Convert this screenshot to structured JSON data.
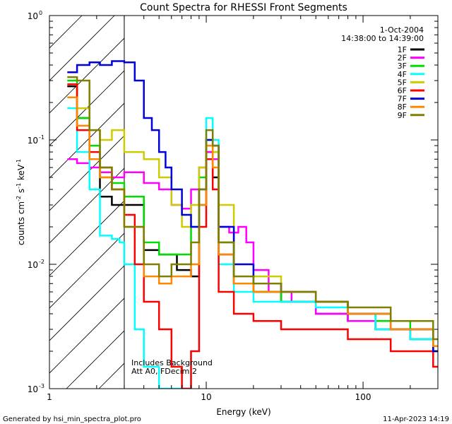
{
  "chart_data": {
    "type": "line",
    "title": "Count Spectra for RHESSI Front Segments",
    "xlabel": "Energy (keV)",
    "ylabel_main": "counts cm",
    "ylabel_exp1": "-2",
    "ylabel_s": " s",
    "ylabel_exp2": "-1",
    "ylabel_kev": " keV",
    "ylabel_exp3": "-1",
    "x_scale": "log",
    "y_scale": "log",
    "xlim": [
      1,
      300
    ],
    "ylim": [
      0.001,
      1
    ],
    "x_ticks": [
      {
        "value": 1,
        "label": "1"
      },
      {
        "value": 10,
        "label": "10"
      },
      {
        "value": 100,
        "label": "100"
      }
    ],
    "y_ticks": [
      {
        "value": 0.001,
        "base": "10",
        "exp": "-3"
      },
      {
        "value": 0.01,
        "base": "10",
        "exp": "-2"
      },
      {
        "value": 0.1,
        "base": "10",
        "exp": "-1"
      },
      {
        "value": 1,
        "base": "10",
        "exp": "0"
      }
    ],
    "date": "1-Oct-2004",
    "time_range": "14:38:00 to 14:39:00",
    "annotations": [
      "Includes Background",
      "Att A0, FDecim 2"
    ],
    "hatched_region_max_kev": 3,
    "footer_left": "Generated by hsi_min_spectra_plot.pro",
    "footer_right": "11-Apr-2023 14:19",
    "series": [
      {
        "name": "1F",
        "color": "#000000",
        "points": [
          [
            1.3,
            0.27
          ],
          [
            1.5,
            0.15
          ],
          [
            1.8,
            0.07
          ],
          [
            2.1,
            0.035
          ],
          [
            2.5,
            0.03
          ],
          [
            3.0,
            0.03
          ],
          [
            4.0,
            0.013
          ],
          [
            5.0,
            0.012
          ],
          [
            6.5,
            0.009
          ],
          [
            8.0,
            0.008
          ],
          [
            9.0,
            0.03
          ],
          [
            10.0,
            0.08
          ],
          [
            11.0,
            0.05
          ],
          [
            12.0,
            0.012
          ],
          [
            15,
            0.007
          ],
          [
            20,
            0.006
          ],
          [
            30,
            0.005
          ],
          [
            50,
            0.004
          ],
          [
            80,
            0.0035
          ],
          [
            120,
            0.003
          ],
          [
            200,
            0.0025
          ],
          [
            280,
            0.002
          ]
        ]
      },
      {
        "name": "2F",
        "color": "#ff00ff",
        "points": [
          [
            1.3,
            0.07
          ],
          [
            1.5,
            0.065
          ],
          [
            1.8,
            0.06
          ],
          [
            2.1,
            0.055
          ],
          [
            2.5,
            0.05
          ],
          [
            3.0,
            0.055
          ],
          [
            4.0,
            0.045
          ],
          [
            5.0,
            0.04
          ],
          [
            6.0,
            0.03
          ],
          [
            7.0,
            0.028
          ],
          [
            8.0,
            0.04
          ],
          [
            9.0,
            0.06
          ],
          [
            10.0,
            0.08
          ],
          [
            11.0,
            0.07
          ],
          [
            12.0,
            0.02
          ],
          [
            14,
            0.018
          ],
          [
            16,
            0.02
          ],
          [
            18,
            0.015
          ],
          [
            20,
            0.009
          ],
          [
            25,
            0.006
          ],
          [
            35,
            0.005
          ],
          [
            50,
            0.004
          ],
          [
            80,
            0.0035
          ],
          [
            150,
            0.003
          ],
          [
            280,
            0.002
          ]
        ]
      },
      {
        "name": "3F",
        "color": "#00dd00",
        "points": [
          [
            1.3,
            0.3
          ],
          [
            1.5,
            0.15
          ],
          [
            1.8,
            0.09
          ],
          [
            2.1,
            0.05
          ],
          [
            2.5,
            0.045
          ],
          [
            3.0,
            0.035
          ],
          [
            4.0,
            0.015
          ],
          [
            5.0,
            0.012
          ],
          [
            6.5,
            0.012
          ],
          [
            8.0,
            0.02
          ],
          [
            9.0,
            0.05
          ],
          [
            10.0,
            0.1
          ],
          [
            11.0,
            0.08
          ],
          [
            12.0,
            0.015
          ],
          [
            15,
            0.007
          ],
          [
            20,
            0.006
          ],
          [
            30,
            0.005
          ],
          [
            50,
            0.005
          ],
          [
            80,
            0.004
          ],
          [
            120,
            0.0035
          ],
          [
            200,
            0.003
          ],
          [
            280,
            0.002
          ]
        ]
      },
      {
        "name": "4F",
        "color": "#00ffff",
        "points": [
          [
            1.3,
            0.18
          ],
          [
            1.5,
            0.08
          ],
          [
            1.8,
            0.04
          ],
          [
            2.1,
            0.017
          ],
          [
            2.5,
            0.016
          ],
          [
            2.8,
            0.015
          ],
          [
            3.0,
            0.01
          ],
          [
            3.5,
            0.003
          ],
          [
            4.0,
            0.0015
          ],
          [
            5.0,
            0.001
          ],
          [
            8.0,
            0.002
          ],
          [
            9.0,
            0.03
          ],
          [
            10.0,
            0.15
          ],
          [
            11.0,
            0.1
          ],
          [
            12.0,
            0.01
          ],
          [
            15,
            0.006
          ],
          [
            20,
            0.005
          ],
          [
            30,
            0.005
          ],
          [
            50,
            0.0045
          ],
          [
            80,
            0.004
          ],
          [
            120,
            0.003
          ],
          [
            200,
            0.0025
          ],
          [
            280,
            0.002
          ]
        ]
      },
      {
        "name": "5F",
        "color": "#cccc00",
        "points": [
          [
            1.3,
            0.22
          ],
          [
            1.5,
            0.18
          ],
          [
            1.8,
            0.12
          ],
          [
            2.1,
            0.1
          ],
          [
            2.5,
            0.12
          ],
          [
            3.0,
            0.08
          ],
          [
            4.0,
            0.07
          ],
          [
            5.0,
            0.05
          ],
          [
            6.0,
            0.03
          ],
          [
            7.0,
            0.02
          ],
          [
            8.0,
            0.03
          ],
          [
            9.0,
            0.06
          ],
          [
            10.0,
            0.1
          ],
          [
            11.0,
            0.08
          ],
          [
            12.0,
            0.03
          ],
          [
            15,
            0.01
          ],
          [
            20,
            0.008
          ],
          [
            30,
            0.006
          ],
          [
            50,
            0.005
          ],
          [
            80,
            0.004
          ],
          [
            150,
            0.003
          ],
          [
            280,
            0.002
          ]
        ]
      },
      {
        "name": "6F",
        "color": "#ff0000",
        "points": [
          [
            1.3,
            0.28
          ],
          [
            1.5,
            0.12
          ],
          [
            1.8,
            0.08
          ],
          [
            2.1,
            0.06
          ],
          [
            2.5,
            0.04
          ],
          [
            3.0,
            0.025
          ],
          [
            3.5,
            0.01
          ],
          [
            4.0,
            0.005
          ],
          [
            5.0,
            0.003
          ],
          [
            6.0,
            0.0015
          ],
          [
            7.0,
            0.001
          ],
          [
            8.0,
            0.002
          ],
          [
            9.0,
            0.02
          ],
          [
            10.0,
            0.07
          ],
          [
            11.0,
            0.04
          ],
          [
            12.0,
            0.006
          ],
          [
            15,
            0.004
          ],
          [
            20,
            0.0035
          ],
          [
            30,
            0.003
          ],
          [
            50,
            0.003
          ],
          [
            80,
            0.0025
          ],
          [
            150,
            0.002
          ],
          [
            280,
            0.0015
          ]
        ]
      },
      {
        "name": "7F",
        "color": "#0000dd",
        "points": [
          [
            1.3,
            0.35
          ],
          [
            1.5,
            0.4
          ],
          [
            1.8,
            0.42
          ],
          [
            2.1,
            0.4
          ],
          [
            2.5,
            0.43
          ],
          [
            3.0,
            0.42
          ],
          [
            3.5,
            0.3
          ],
          [
            4.0,
            0.15
          ],
          [
            4.5,
            0.12
          ],
          [
            5.0,
            0.08
          ],
          [
            5.5,
            0.06
          ],
          [
            6.0,
            0.04
          ],
          [
            7.0,
            0.025
          ],
          [
            8.0,
            0.02
          ],
          [
            9.0,
            0.04
          ],
          [
            10.0,
            0.1
          ],
          [
            11.0,
            0.09
          ],
          [
            12.0,
            0.02
          ],
          [
            15,
            0.01
          ],
          [
            20,
            0.007
          ],
          [
            30,
            0.006
          ],
          [
            50,
            0.005
          ],
          [
            80,
            0.004
          ],
          [
            150,
            0.003
          ],
          [
            280,
            0.002
          ]
        ]
      },
      {
        "name": "8F",
        "color": "#ff8800",
        "points": [
          [
            1.3,
            0.22
          ],
          [
            1.5,
            0.13
          ],
          [
            1.8,
            0.07
          ],
          [
            2.1,
            0.05
          ],
          [
            2.5,
            0.04
          ],
          [
            3.0,
            0.02
          ],
          [
            4.0,
            0.008
          ],
          [
            5.0,
            0.007
          ],
          [
            6.0,
            0.008
          ],
          [
            8.0,
            0.01
          ],
          [
            9.0,
            0.03
          ],
          [
            10.0,
            0.09
          ],
          [
            11.0,
            0.06
          ],
          [
            12.0,
            0.012
          ],
          [
            15,
            0.007
          ],
          [
            20,
            0.006
          ],
          [
            30,
            0.006
          ],
          [
            50,
            0.005
          ],
          [
            80,
            0.004
          ],
          [
            150,
            0.003
          ],
          [
            280,
            0.0022
          ]
        ]
      },
      {
        "name": "9F",
        "color": "#808000",
        "points": [
          [
            1.3,
            0.32
          ],
          [
            1.5,
            0.3
          ],
          [
            1.8,
            0.12
          ],
          [
            2.1,
            0.06
          ],
          [
            2.5,
            0.04
          ],
          [
            3.0,
            0.02
          ],
          [
            4.0,
            0.01
          ],
          [
            5.0,
            0.008
          ],
          [
            6.0,
            0.01
          ],
          [
            8.0,
            0.015
          ],
          [
            9.0,
            0.04
          ],
          [
            10.0,
            0.12
          ],
          [
            11.0,
            0.09
          ],
          [
            12.0,
            0.015
          ],
          [
            15,
            0.008
          ],
          [
            20,
            0.007
          ],
          [
            30,
            0.006
          ],
          [
            50,
            0.005
          ],
          [
            80,
            0.0045
          ],
          [
            150,
            0.0035
          ],
          [
            280,
            0.0025
          ]
        ]
      }
    ]
  }
}
